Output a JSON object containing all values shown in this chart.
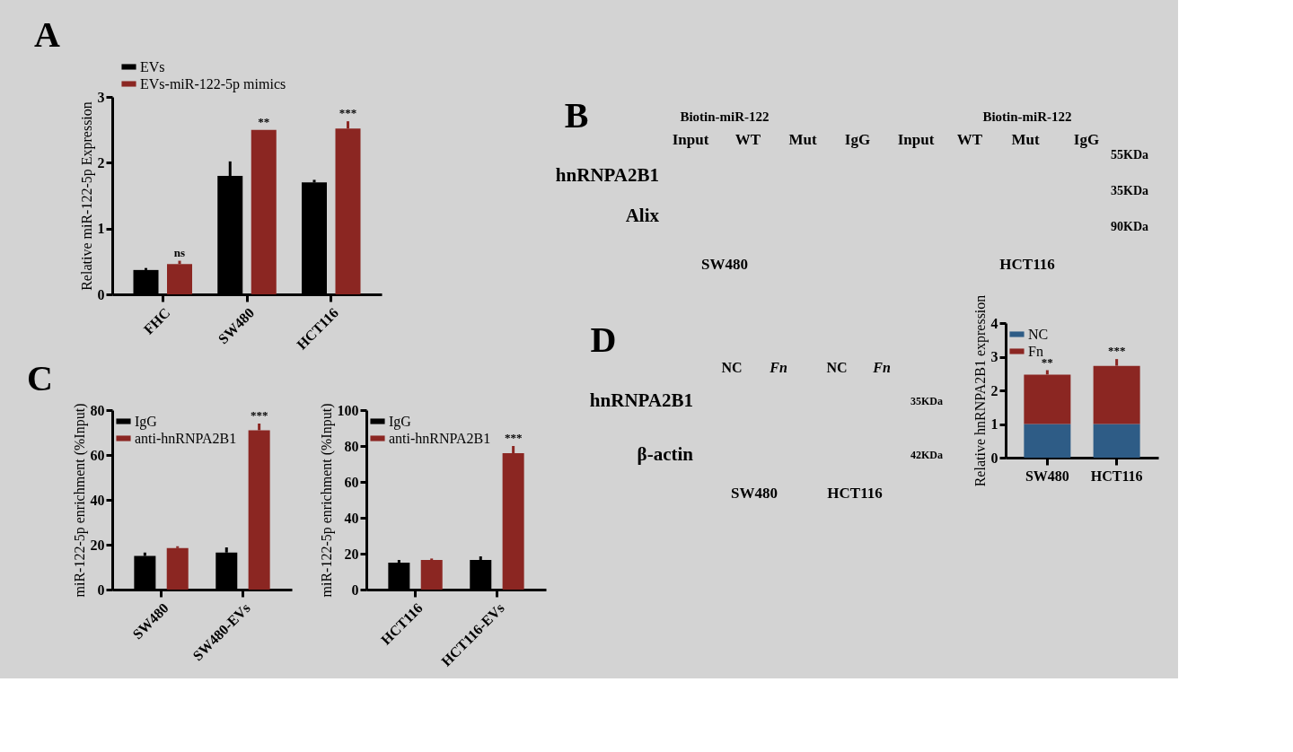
{
  "chart_data": [
    {
      "type": "bar",
      "title": "A",
      "ylabel": "Relative miR-122-5p Expression",
      "categories": [
        "FHC",
        "SW480",
        "HCT116"
      ],
      "ylim": [
        0,
        3
      ],
      "yticks": [
        0,
        1,
        2,
        3
      ],
      "legend": "top left",
      "grid": false,
      "series": [
        {
          "name": "EVs",
          "color": "#000000",
          "values": [
            0.37,
            1.8,
            1.7
          ],
          "errors": [
            [
              0.37,
              0.4
            ],
            [
              1.8,
              2.02
            ],
            [
              1.7,
              1.74
            ]
          ]
        },
        {
          "name": "EVs-miR-122-5p mimics",
          "color": "#8b2622",
          "values": [
            0.46,
            2.5,
            2.52
          ],
          "errors": [
            [
              0.46,
              0.51
            ],
            null,
            [
              2.52,
              2.63
            ]
          ]
        }
      ],
      "annotations": [
        "ns",
        "**",
        "***"
      ]
    },
    {
      "type": "other",
      "annotations": [
        "B",
        "Biotin-miR-122",
        "Biotin-miR-122",
        "Input",
        "WT",
        "Mut",
        "IgG",
        "Input",
        "WT",
        "Mut",
        "IgG",
        "hnRNPA2B1",
        "Alix",
        "55KDa",
        "35KDa",
        "90KDa",
        "SW480",
        "HCT116"
      ]
    },
    {
      "type": "bar",
      "title": "C",
      "ylabel": "miR-122-5p enrichment (%Input)",
      "categories": [
        "SW480",
        "SW480-EVs"
      ],
      "ylim": [
        0,
        80
      ],
      "yticks": [
        0,
        20,
        40,
        60,
        80
      ],
      "legend": "top left",
      "grid": false,
      "series": [
        {
          "name": "IgG",
          "color": "#000000",
          "values": [
            15,
            16.5
          ],
          "errors": [
            [
              15,
              16.5
            ],
            [
              16.5,
              18.8
            ]
          ]
        },
        {
          "name": "anti-hnRNPA2B1",
          "color": "#8b2622",
          "values": [
            18.5,
            71
          ],
          "errors": [
            [
              18.5,
              19.3
            ],
            [
              71,
              74
            ]
          ]
        }
      ],
      "annotations": [
        "***"
      ]
    },
    {
      "type": "bar",
      "ylabel": "miR-122-5p enrichment (%Input)",
      "categories": [
        "HCT116",
        "HCT116-EVs"
      ],
      "ylim": [
        0,
        100
      ],
      "yticks": [
        0,
        20,
        40,
        60,
        80,
        100
      ],
      "legend": "top left",
      "grid": false,
      "series": [
        {
          "name": "IgG",
          "color": "#000000",
          "values": [
            15,
            16.5
          ],
          "errors": [
            [
              15,
              16.5
            ],
            [
              16.5,
              18.5
            ]
          ]
        },
        {
          "name": "anti-hnRNPA2B1",
          "color": "#8b2622",
          "values": [
            16.5,
            76
          ],
          "errors": [
            [
              16.5,
              17.3
            ],
            [
              76,
              80
            ]
          ]
        }
      ],
      "annotations": [
        "***"
      ]
    },
    {
      "type": "other",
      "annotations": [
        "D",
        "NC",
        "Fn",
        "NC",
        "Fn",
        "hnRNPA2B1",
        "β-actin",
        "35KDa",
        "42KDa",
        "SW480",
        "HCT116"
      ]
    },
    {
      "type": "bar",
      "stacked": true,
      "ylabel": "Relative hnRNPA2B1 expression",
      "categories": [
        "SW480",
        "HCT116"
      ],
      "ylim": [
        0,
        4
      ],
      "yticks": [
        0,
        1,
        2,
        3,
        4
      ],
      "legend": "top left",
      "grid": false,
      "series": [
        {
          "name": "NC",
          "color": "#2e5c86",
          "values": [
            1,
            1
          ]
        },
        {
          "name": "Fn",
          "color": "#8b2622",
          "values": [
            1.47,
            1.73
          ],
          "errors": [
            [
              2.47,
              2.6
            ],
            [
              2.73,
              2.93
            ]
          ]
        }
      ],
      "annotations": [
        "**",
        "***"
      ]
    }
  ]
}
